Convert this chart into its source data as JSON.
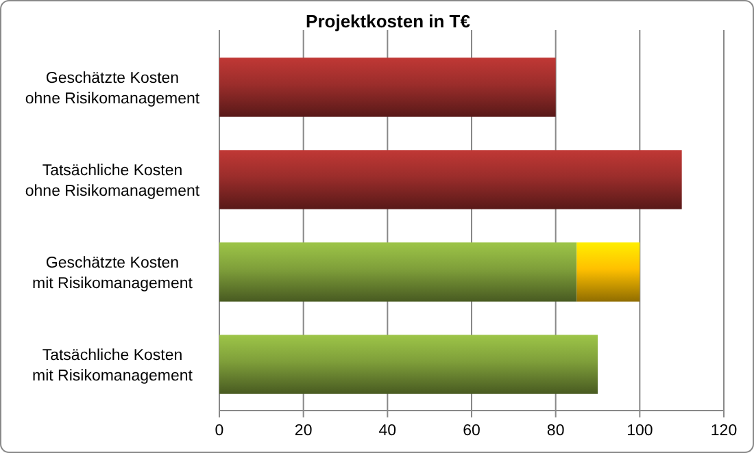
{
  "chart_data": {
    "type": "bar",
    "title": "Projektkosten in T€",
    "orientation": "horizontal",
    "stacked": true,
    "categories": [
      "Geschätzte Kosten\nohne Risikomanagement",
      "Tatsächliche Kosten\nohne Risikomanagement",
      "Geschätzte Kosten\nmit Risikomanagement",
      "Tatsächliche Kosten\nmit Risikomanagement"
    ],
    "series": [
      {
        "colors": [
          "#9b2d2b",
          "#9b2d2b",
          "#7f9f3a",
          "#7f9f3a"
        ],
        "values": [
          80,
          110,
          85,
          90
        ]
      },
      {
        "color": "#ffc000",
        "values": [
          null,
          null,
          15,
          null
        ]
      }
    ],
    "xlim": [
      0,
      120
    ],
    "xticks": [
      0,
      20,
      40,
      60,
      80,
      100,
      120
    ],
    "grid": "x"
  }
}
